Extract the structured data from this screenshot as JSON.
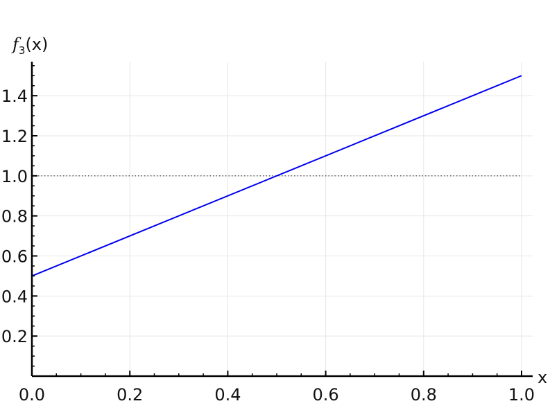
{
  "chart_data": {
    "type": "line",
    "title": "",
    "xlabel": "x",
    "ylabel": {
      "main": "f",
      "subscript": "3",
      "suffix": "(x)"
    },
    "xlim": [
      0.0,
      1.0
    ],
    "ylim": [
      0.0,
      1.57
    ],
    "x_ticks": [
      0.0,
      0.2,
      0.4,
      0.6,
      0.8,
      1.0
    ],
    "x_tick_labels": [
      "0.0",
      "0.2",
      "0.4",
      "0.6",
      "0.8",
      "1.0"
    ],
    "y_ticks": [
      0.2,
      0.4,
      0.6,
      0.8,
      1.0,
      1.2,
      1.4
    ],
    "y_tick_labels": [
      "0.2",
      "0.4",
      "0.6",
      "0.8",
      "1.0",
      "1.2",
      "1.4"
    ],
    "grid": true,
    "series": [
      {
        "x": [
          0.0,
          1.0
        ],
        "y": [
          0.5,
          1.5
        ],
        "color": "#0000ee",
        "style": "solid"
      }
    ],
    "reference_lines": [
      {
        "orientation": "horizontal",
        "y": 1.0,
        "x_range": [
          0.0,
          1.0
        ],
        "style": "dotted",
        "color": "#555555"
      }
    ],
    "colors": {
      "axis": "#000000",
      "grid": "#e6e6e6"
    }
  }
}
